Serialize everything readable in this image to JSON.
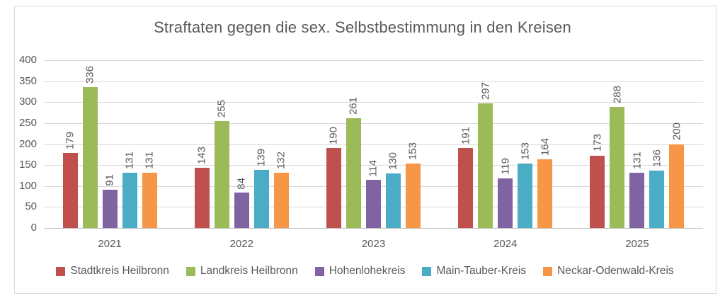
{
  "chart_data": {
    "type": "bar",
    "title": "Straftaten gegen die sex. Selbstbestimmung in den Kreisen",
    "categories": [
      "2021",
      "2022",
      "2023",
      "2024",
      "2025"
    ],
    "series": [
      {
        "name": "Stadtkreis Heilbronn",
        "color": "#C0504D",
        "values": [
          179,
          143,
          190,
          191,
          173
        ]
      },
      {
        "name": "Landkreis Heilbronn",
        "color": "#9BBB59",
        "values": [
          336,
          255,
          261,
          297,
          288
        ]
      },
      {
        "name": "Hohenlohekreis",
        "color": "#8064A2",
        "values": [
          91,
          84,
          114,
          119,
          131
        ]
      },
      {
        "name": "Main-Tauber-Kreis",
        "color": "#4BACC6",
        "values": [
          131,
          139,
          130,
          153,
          136
        ]
      },
      {
        "name": "Neckar-Odenwald-Kreis",
        "color": "#F79646",
        "values": [
          131,
          132,
          153,
          164,
          200
        ]
      }
    ],
    "xlabel": "",
    "ylabel": "",
    "ylim": [
      0,
      400
    ],
    "ytick_step": 50,
    "grid": true,
    "legend_position": "bottom",
    "data_labels": "rotated-vertical"
  },
  "colors": {
    "text": "#595959",
    "gridline": "#D9D9D9",
    "axis_line": "#BFBFBF",
    "frame_border": "#D9D9D9",
    "background": "#FFFFFF"
  }
}
